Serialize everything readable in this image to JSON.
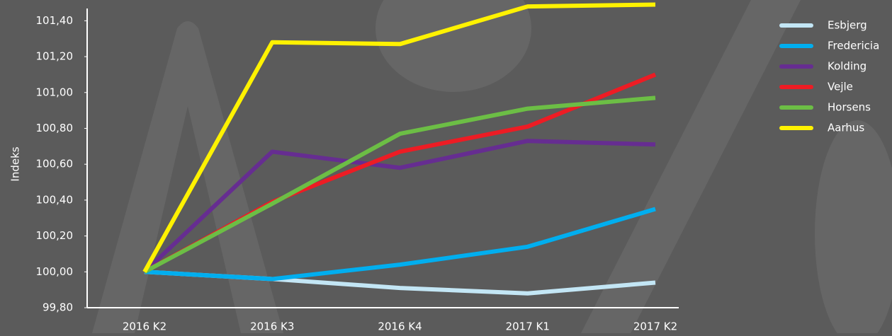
{
  "chart_data": {
    "type": "line",
    "y_label": "Indeks",
    "categories": [
      "2016 K2",
      "2016 K3",
      "2016 K4",
      "2017 K1",
      "2017 K2"
    ],
    "series": [
      {
        "name": "Esbjerg",
        "color": "#c3e6f5",
        "values": [
          100.0,
          99.96,
          99.91,
          99.88,
          99.94
        ]
      },
      {
        "name": "Fredericia",
        "color": "#00aeef",
        "values": [
          100.0,
          99.96,
          100.04,
          100.14,
          100.35
        ]
      },
      {
        "name": "Kolding",
        "color": "#662d91",
        "values": [
          100.0,
          100.67,
          100.58,
          100.73,
          100.71
        ]
      },
      {
        "name": "Vejle",
        "color": "#ed1c24",
        "values": [
          100.0,
          100.39,
          100.67,
          100.81,
          101.1
        ]
      },
      {
        "name": "Horsens",
        "color": "#6cbe45",
        "values": [
          100.0,
          100.38,
          100.77,
          100.91,
          100.97
        ]
      },
      {
        "name": "Aarhus",
        "color": "#fff200",
        "values": [
          100.0,
          101.28,
          101.27,
          101.48,
          101.49
        ]
      }
    ],
    "ylim": [
      99.8,
      101.5
    ],
    "yticks": [
      {
        "value": 99.8,
        "label": "99,80"
      },
      {
        "value": 100.0,
        "label": "100,00"
      },
      {
        "value": 100.2,
        "label": "100,20"
      },
      {
        "value": 100.4,
        "label": "100,40"
      },
      {
        "value": 100.6,
        "label": "100,60"
      },
      {
        "value": 100.8,
        "label": "100,80"
      },
      {
        "value": 101.0,
        "label": "101,00"
      },
      {
        "value": 101.2,
        "label": "101,20"
      },
      {
        "value": 101.4,
        "label": "101,40"
      }
    ],
    "legend": "right"
  }
}
